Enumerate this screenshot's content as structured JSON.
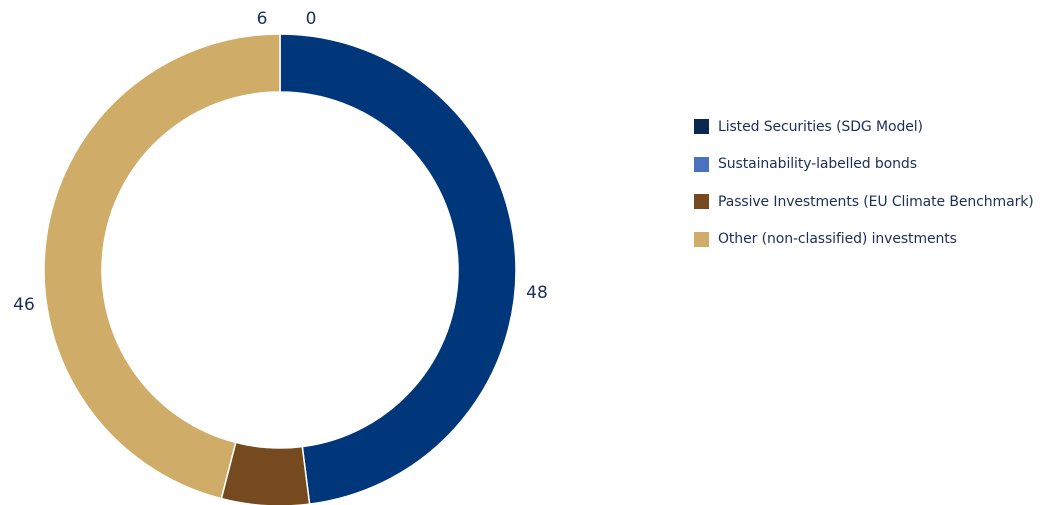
{
  "chart_data": {
    "type": "pie",
    "categories": [
      "Listed Securities (SDG Model)",
      "Sustainability-labelled bonds",
      "Passive Investments (EU Climate Benchmark)",
      "Other (non-classified) investments"
    ],
    "values": [
      48,
      0,
      6,
      46
    ],
    "value_labels": [
      "48",
      "0",
      "6",
      "46"
    ],
    "colors": [
      "#00367a",
      "#4a72c0",
      "#744a1e",
      "#cfac68"
    ],
    "legend_swatch_colors": [
      "#0b2850",
      "#4a72c0",
      "#744a1e",
      "#cfac68"
    ],
    "donut": true,
    "legend_position": "right"
  }
}
